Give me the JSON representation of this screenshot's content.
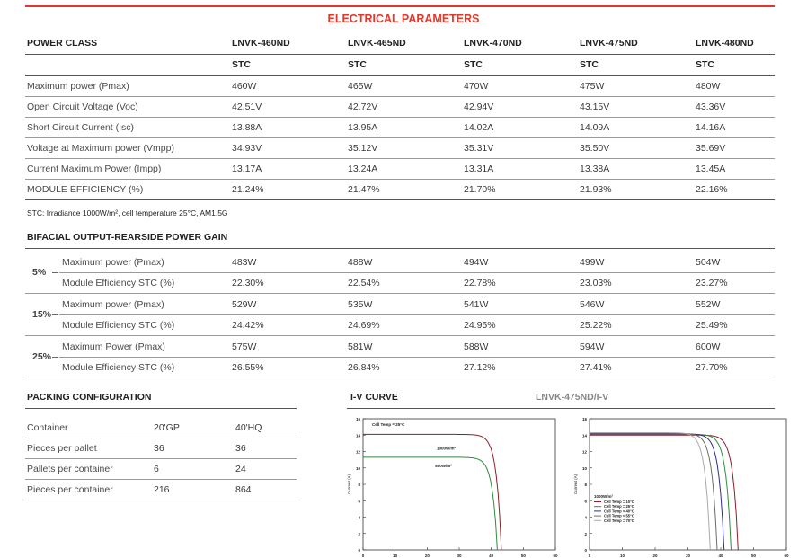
{
  "title": "ELECTRICAL PARAMETERS",
  "header": {
    "label": "POWER CLASS",
    "models": [
      "LNVK-460ND",
      "LNVK-465ND",
      "LNVK-470ND",
      "LNVK-475ND",
      "LNVK-480ND"
    ],
    "condition": "STC"
  },
  "stc_rows": [
    {
      "label": "Maximum power (Pmax)",
      "values": [
        "460W",
        "465W",
        "470W",
        "475W",
        "480W"
      ]
    },
    {
      "label": "Open Circuit Voltage (Voc)",
      "values": [
        "42.51V",
        "42.72V",
        "42.94V",
        "43.15V",
        "43.36V"
      ]
    },
    {
      "label": "Short Circuit Current (Isc)",
      "values": [
        "13.88A",
        "13.95A",
        "14.02A",
        "14.09A",
        "14.16A"
      ]
    },
    {
      "label": "Voltage at Maximum power (Vmpp)",
      "values": [
        "34.93V",
        "35.12V",
        "35.31V",
        "35.50V",
        "35.69V"
      ]
    },
    {
      "label": "Current Maximum Power (Impp)",
      "values": [
        "13.17A",
        "13.24A",
        "13.31A",
        "13.38A",
        "13.45A"
      ]
    },
    {
      "label": "MODULE EFFICIENCY (%)",
      "values": [
        "21.24%",
        "21.47%",
        "21.70%",
        "21.93%",
        "22.16%"
      ]
    }
  ],
  "stc_note": "STC: Irradiance 1000W/m², cell temperature 25°C, AM1.5G",
  "bifacial": {
    "title": "BIFACIAL OUTPUT-REARSIDE POWER GAIN",
    "groups": [
      {
        "gain": "5%",
        "rows": [
          {
            "label": "Maximum power (Pmax)",
            "values": [
              "483W",
              "488W",
              "494W",
              "499W",
              "504W"
            ]
          },
          {
            "label": "Module Efficiency STC (%)",
            "values": [
              "22.30%",
              "22.54%",
              "22.78%",
              "23.03%",
              "23.27%"
            ]
          }
        ]
      },
      {
        "gain": "15%",
        "rows": [
          {
            "label": "Maximum power (Pmax)",
            "values": [
              "529W",
              "535W",
              "541W",
              "546W",
              "552W"
            ]
          },
          {
            "label": "Module Efficiency STC (%)",
            "values": [
              "24.42%",
              "24.69%",
              "24.95%",
              "25.22%",
              "25.49%"
            ]
          }
        ]
      },
      {
        "gain": "25%",
        "rows": [
          {
            "label": "Maximum Power (Pmax)",
            "values": [
              "575W",
              "581W",
              "588W",
              "594W",
              "600W"
            ]
          },
          {
            "label": "Module Efficiency STC (%)",
            "values": [
              "26.55%",
              "26.84%",
              "27.12%",
              "27.41%",
              "27.70%"
            ]
          }
        ]
      }
    ]
  },
  "packing": {
    "title": "PACKING CONFIGURATION",
    "rows": [
      {
        "label": "Container",
        "a": "20'GP",
        "b": "40'HQ"
      },
      {
        "label": "Pieces per pallet",
        "a": "36",
        "b": "36"
      },
      {
        "label": "Pallets per container",
        "a": "6",
        "b": "24"
      },
      {
        "label": "Pieces per container",
        "a": "216",
        "b": "864"
      }
    ]
  },
  "iv": {
    "title": "I-V CURVE",
    "subtitle": "LNVK-475ND/I-V",
    "ylabel": "Current (A)",
    "xlabel": "Voltage (V)",
    "xticks": [
      "0",
      "10",
      "20",
      "30",
      "40",
      "50",
      "60"
    ],
    "yticks": [
      "0",
      "2",
      "4",
      "6",
      "8",
      "10",
      "12",
      "14",
      "16"
    ],
    "chart1": {
      "label": "Cell Temp = 25°C",
      "curves": [
        "1000W/m²",
        "800W/m²"
      ]
    },
    "chart2": {
      "irradiance": "1000W/m²",
      "legend": [
        "Cell Temp = 10°C",
        "Cell Temp = 25°C",
        "Cell Temp = 40°C",
        "Cell Temp = 55°C",
        "Cell Temp = 70°C"
      ]
    }
  },
  "chart_data": [
    {
      "type": "line",
      "title": "Cell Temp = 25°C",
      "xlabel": "Voltage (V)",
      "ylabel": "Current (A)",
      "xlim": [
        0,
        60
      ],
      "ylim": [
        0,
        16
      ],
      "series": [
        {
          "name": "1000W/m²",
          "isc": 14.09,
          "voc": 43.15,
          "color": "#8b1e2a"
        },
        {
          "name": "800W/m²",
          "isc": 11.3,
          "voc": 41.9,
          "color": "#2e8b3a"
        }
      ]
    },
    {
      "type": "line",
      "title": "1000W/m²",
      "xlabel": "Voltage (V)",
      "ylabel": "Current (A)",
      "xlim": [
        0,
        60
      ],
      "ylim": [
        0,
        16
      ],
      "series": [
        {
          "name": "Cell Temp = 10°C",
          "isc": 14.0,
          "voc": 45.3,
          "color": "#8b1e2a"
        },
        {
          "name": "Cell Temp = 25°C",
          "isc": 14.09,
          "voc": 43.15,
          "color": "#2e8b3a"
        },
        {
          "name": "Cell Temp = 40°C",
          "isc": 14.15,
          "voc": 41.0,
          "color": "#2b2b8c"
        },
        {
          "name": "Cell Temp = 55°C",
          "isc": 14.22,
          "voc": 38.9,
          "color": "#6b6b6b"
        },
        {
          "name": "Cell Temp = 70°C",
          "isc": 14.3,
          "voc": 36.8,
          "color": "#a9a9a9"
        }
      ]
    }
  ],
  "colors": {
    "accent": "#e0392b",
    "gray_line": "#9a9a9a"
  }
}
